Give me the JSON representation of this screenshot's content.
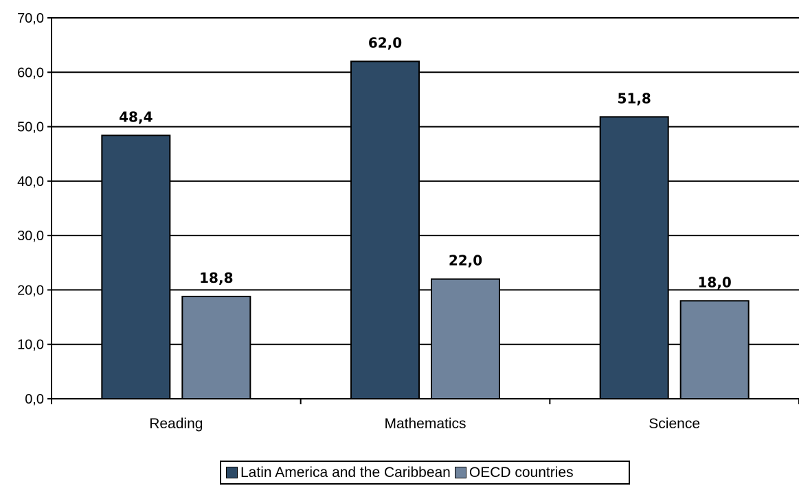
{
  "chart_data": {
    "type": "bar",
    "categories": [
      "Reading",
      "Mathematics",
      "Science"
    ],
    "series": [
      {
        "name": "Latin America and the Caribbean",
        "values": [
          48.4,
          62.0,
          51.8
        ],
        "labels": [
          "48,4",
          "62,0",
          "51,8"
        ],
        "color": "#2d4a66"
      },
      {
        "name": "OECD countries",
        "values": [
          18.8,
          22.0,
          18.0
        ],
        "labels": [
          "18,8",
          "22,0",
          "18,0"
        ],
        "color": "#6f839c"
      }
    ],
    "ylim": [
      0,
      70
    ],
    "yticks": [
      0,
      10,
      20,
      30,
      40,
      50,
      60,
      70
    ],
    "ytick_labels": [
      "0,0",
      "10,0",
      "20,0",
      "30,0",
      "40,0",
      "50,0",
      "60,0",
      "70,0"
    ],
    "grid": true,
    "legend_position": "bottom-center"
  }
}
